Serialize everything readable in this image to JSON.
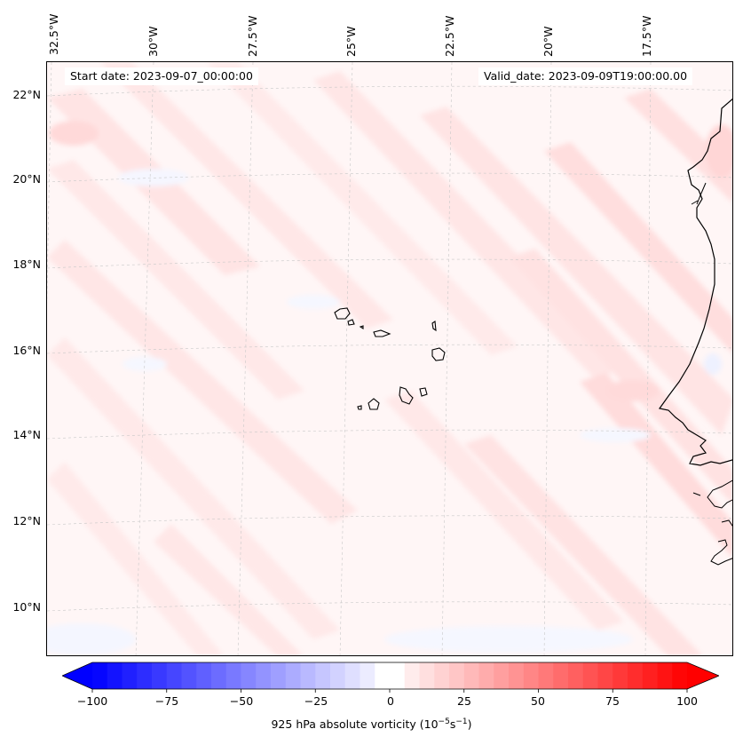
{
  "map": {
    "start_date": "Start date: 2023-09-07_00:00:00",
    "valid_date": "Valid_date: 2023-09-09T19:00:00.00",
    "lon_labels": [
      "32.5°W",
      "30°W",
      "27.5°W",
      "25°W",
      "22.5°W",
      "20°W",
      "17.5°W"
    ],
    "lat_labels": [
      "22°N",
      "20°N",
      "18°N",
      "16°N",
      "14°N",
      "12°N",
      "10°N"
    ],
    "field_colormap": "bwr",
    "coastline_color": "#000000",
    "gridline_color": "#c8c8c8"
  },
  "colorbar": {
    "min": -100,
    "max": 100,
    "ticks": [
      "−100",
      "−75",
      "−50",
      "−25",
      "0",
      "25",
      "50",
      "75",
      "100"
    ],
    "negative_color": "#0000ff",
    "zero_color": "#ffffff",
    "positive_color": "#ff0000",
    "label_prefix": "925 hPa absolute vorticity (10",
    "label_exp1": "−5",
    "label_mid": "s",
    "label_exp2": "−1",
    "label_suffix": ")"
  }
}
